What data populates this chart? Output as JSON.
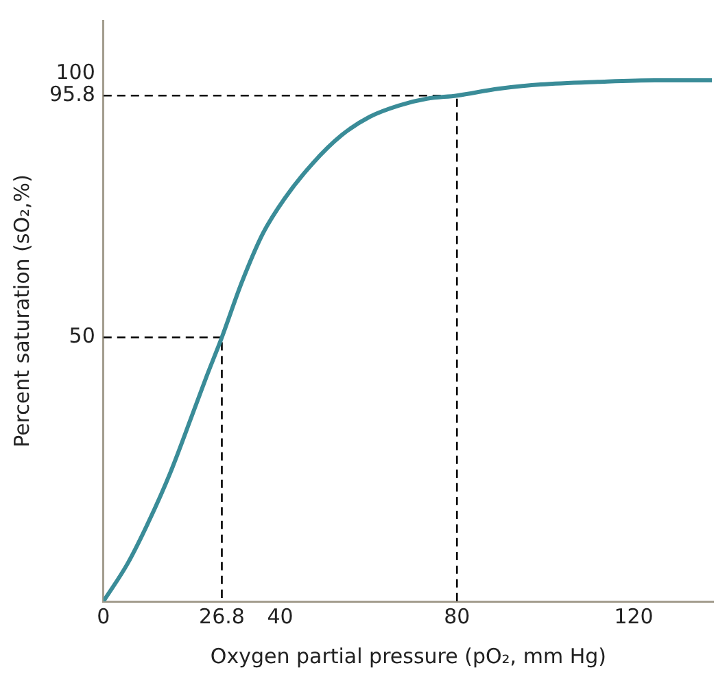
{
  "chart_data": {
    "type": "line",
    "xlabel": "Oxygen partial pressure (pO₂, mm Hg)",
    "ylabel": "Percent saturation (sO₂,%)",
    "xlim": [
      0,
      138
    ],
    "ylim": [
      0,
      110
    ],
    "xticks": [
      0,
      26.8,
      40,
      80,
      120
    ],
    "yticks": [
      50,
      95.8,
      100
    ],
    "grid": false,
    "legend": false,
    "marker": "none",
    "series": [
      {
        "color": "#3a8c98",
        "line_style": "solid",
        "x": [
          0,
          5.5,
          10.3,
          15.2,
          20,
          23.2,
          26.8,
          31.3,
          36.1,
          41,
          47.4,
          53.9,
          60.3,
          66.8,
          73.2,
          80,
          89.4,
          99,
          111.9,
          124.8,
          137.7
        ],
        "values": [
          0,
          7.2,
          15.2,
          24.5,
          35.1,
          42.3,
          50,
          60.4,
          69.7,
          76.3,
          83,
          88.3,
          91.8,
          93.9,
          95.2,
          95.8,
          97.1,
          97.9,
          98.4,
          98.7,
          98.7
        ]
      },
      {
        "color": "#000000",
        "line_style": "dashed",
        "x": [
          0,
          26.8,
          26.8
        ],
        "values": [
          50,
          50,
          0
        ]
      },
      {
        "color": "#000000",
        "line_style": "dashed",
        "x": [
          0,
          80,
          80
        ],
        "values": [
          95.8,
          95.8,
          0
        ]
      }
    ]
  }
}
